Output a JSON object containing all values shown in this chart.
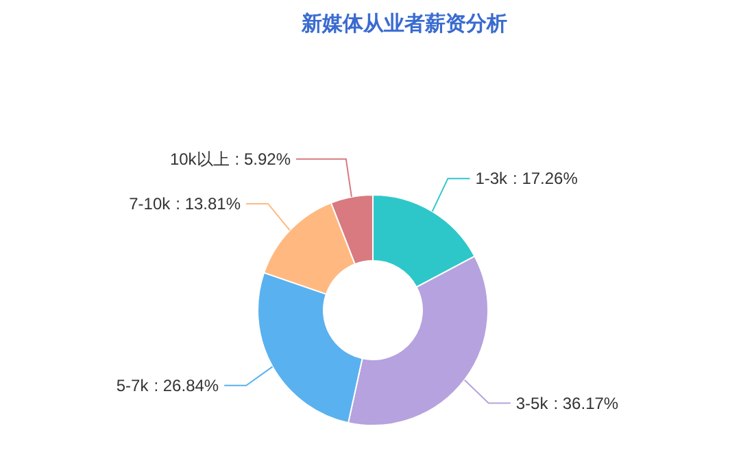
{
  "chart_data": {
    "type": "donut",
    "title": "新媒体从业者薪资分析",
    "categories": [
      "1-3k",
      "3-5k",
      "5-7k",
      "7-10k",
      "10k以上"
    ],
    "values": [
      17.26,
      36.17,
      26.84,
      13.81,
      5.92
    ],
    "colors": [
      "#2ec7c9",
      "#b6a2de",
      "#5ab1ef",
      "#ffb980",
      "#d87a80"
    ],
    "value_labels": [
      ": 17.26%",
      ": 36.17%",
      ": 26.84%",
      ": 13.81%",
      ": 5.92%"
    ]
  }
}
